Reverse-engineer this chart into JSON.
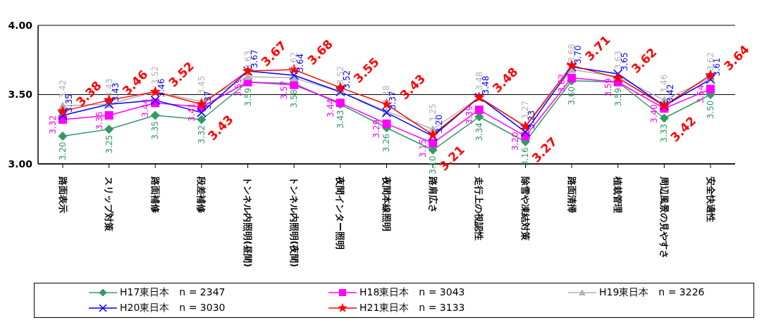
{
  "chart_data": {
    "type": "line",
    "categories": [
      "路面表示",
      "スリップ対策",
      "路面補修",
      "段差補修",
      "トンネル内照明(昼間)",
      "トンネル内照明(夜間)",
      "夜間インター照明",
      "夜間本線照明",
      "路肩広さ",
      "走行上の視認性",
      "除雪や凍結対策",
      "路面清掃",
      "植栽管理",
      "周辺風景の見やすさ",
      "安全快適性"
    ],
    "series": [
      {
        "name": "H17東日本　n = 2347",
        "color": "#339966",
        "marker": "diamond",
        "values": [
          3.2,
          3.25,
          3.35,
          3.32,
          3.59,
          3.58,
          3.43,
          3.26,
          3.1,
          3.34,
          3.16,
          3.6,
          3.59,
          3.33,
          3.5
        ],
        "value_labels": [
          "3.20",
          "3.25",
          "3.35",
          "3.32",
          "3.59",
          "3.58",
          "3.43",
          "3.26",
          "3.10",
          "3.34",
          "3.16",
          "3.60",
          "3.59",
          "3.33",
          "3.50"
        ]
      },
      {
        "name": "H18東日本　n = 3043",
        "color": "#ff00ff",
        "marker": "square",
        "values": [
          3.32,
          3.35,
          3.44,
          3.41,
          3.59,
          3.57,
          3.44,
          3.29,
          3.15,
          3.39,
          3.2,
          3.62,
          3.59,
          3.4,
          3.54
        ],
        "value_labels": [
          "3.32",
          "3.35",
          "3.44",
          "3.41",
          "3.59",
          "3.57",
          "3.44",
          "3.29",
          "3.15",
          "3.39",
          "3.20",
          "3.62",
          "3.59",
          "3.40",
          "3.54"
        ]
      },
      {
        "name": "H19東日本　n = 3226",
        "color": "#b2b2b2",
        "marker": "triangle",
        "values": [
          3.42,
          3.43,
          3.52,
          3.45,
          3.63,
          3.62,
          3.52,
          3.38,
          3.25,
          3.48,
          3.27,
          3.68,
          3.63,
          3.46,
          3.62
        ],
        "value_labels": [
          "3.42",
          "3.43",
          "3.52",
          "3.45",
          "3.63",
          "3.62",
          "3.52",
          "3.38",
          "3.25",
          "3.48",
          "3.27",
          "3.68",
          "3.63",
          "3.46",
          "3.62"
        ]
      },
      {
        "name": "H20東日本　n = 3030",
        "color": "#0000ff",
        "marker": "cross",
        "values": [
          3.35,
          3.43,
          3.46,
          3.37,
          3.67,
          3.64,
          3.52,
          3.37,
          3.2,
          3.48,
          3.23,
          3.7,
          3.65,
          3.42,
          3.61
        ],
        "value_labels": [
          "3.35",
          "3.43",
          "3.46",
          "3.37",
          "3.67",
          "3.64",
          "3.52",
          "3.37",
          "3.20",
          "3.48",
          "3.23",
          "3.70",
          "3.65",
          "3.42",
          "3.61"
        ]
      },
      {
        "name": "H21東日本　n = 3133",
        "color": "#ff0000",
        "marker": "star",
        "values": [
          3.38,
          3.46,
          3.52,
          3.43,
          3.67,
          3.68,
          3.55,
          3.43,
          3.21,
          3.48,
          3.27,
          3.71,
          3.62,
          3.42,
          3.64
        ],
        "value_labels": [
          "3.38",
          "3.46",
          "3.52",
          "3.43",
          "3.67",
          "3.68",
          "3.55",
          "3.43",
          "3.21",
          "3.48",
          "3.27",
          "3.71",
          "3.62",
          "3.42",
          "3.64"
        ]
      }
    ],
    "ylim": [
      3.0,
      4.0
    ],
    "yticks": [
      {
        "value": 3.0,
        "label": "3.00"
      },
      {
        "value": 3.5,
        "label": "3.50"
      },
      {
        "value": 4.0,
        "label": "4.00"
      }
    ],
    "grid": "y",
    "legend": "bottom"
  }
}
